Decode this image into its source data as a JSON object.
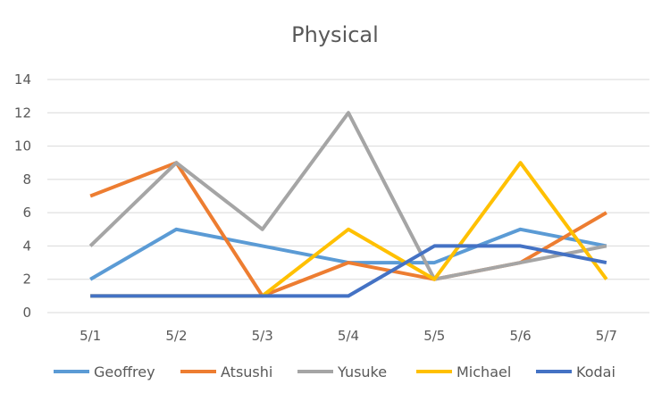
{
  "chart_data": {
    "type": "line",
    "title": "Physical",
    "xlabel": "",
    "ylabel": "",
    "categories": [
      "5/1",
      "5/2",
      "5/3",
      "5/4",
      "5/5",
      "5/6",
      "5/7"
    ],
    "ylim": [
      0,
      14
    ],
    "yticks": [
      0,
      2,
      4,
      6,
      8,
      10,
      12,
      14
    ],
    "grid": true,
    "legend_position": "bottom",
    "series": [
      {
        "name": "Geoffrey",
        "color": "#5b9bd5",
        "values": [
          2,
          5,
          4,
          3,
          3,
          5,
          4
        ]
      },
      {
        "name": "Atsushi",
        "color": "#ed7d31",
        "values": [
          7,
          9,
          1,
          3,
          2,
          3,
          6
        ]
      },
      {
        "name": "Yusuke",
        "color": "#a5a5a5",
        "values": [
          4,
          9,
          5,
          12,
          2,
          3,
          4
        ]
      },
      {
        "name": "Michael",
        "color": "#ffc000",
        "values": [
          1,
          1,
          1,
          5,
          2,
          9,
          2
        ]
      },
      {
        "name": "Kodai",
        "color": "#4472c4",
        "values": [
          1,
          1,
          1,
          1,
          4,
          4,
          3
        ]
      }
    ]
  }
}
